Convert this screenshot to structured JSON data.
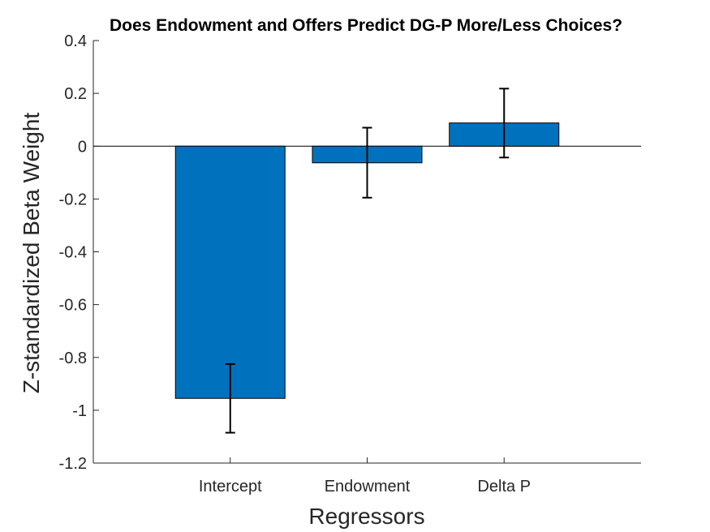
{
  "chart_data": {
    "type": "bar",
    "title": "Does Endowment and Offers Predict DG-P More/Less Choices?",
    "xlabel": "Regressors",
    "ylabel": "Z-standardized Beta Weight",
    "categories": [
      "Intercept",
      "Endowment",
      "Delta P"
    ],
    "values": [
      -0.955,
      -0.063,
      0.088
    ],
    "error_low": [
      -1.085,
      -0.195,
      -0.043
    ],
    "error_high": [
      -0.825,
      0.07,
      0.218
    ],
    "ylim": [
      -1.2,
      0.4
    ],
    "yticks": [
      "0.4",
      "0.2",
      "0",
      "-0.2",
      "-0.4",
      "-0.6",
      "-0.8",
      "-1",
      "-1.2"
    ],
    "bar_color": "#0072BD",
    "grid": false,
    "legend": false
  }
}
